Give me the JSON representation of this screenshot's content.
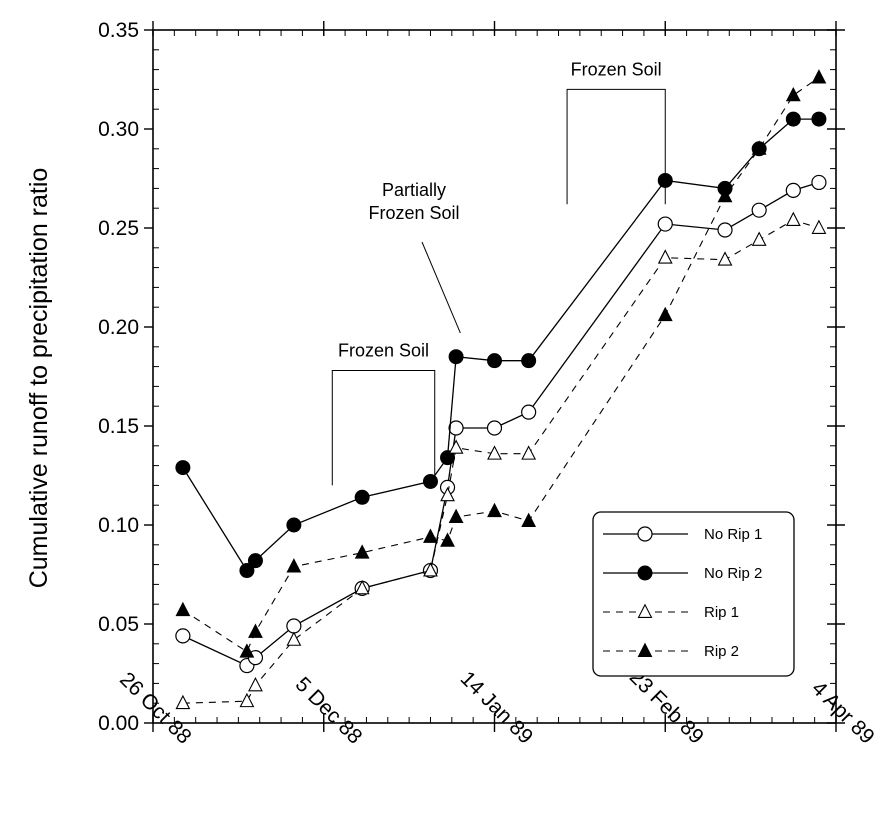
{
  "chart_data": {
    "type": "line",
    "title": "",
    "xlabel": "",
    "ylabel": "Cumulative runoff to precipitation ratio",
    "ylim": [
      0.0,
      0.35
    ],
    "xlim": [
      "1988-10-26",
      "1989-04-04"
    ],
    "x_ticks": [
      "1988-10-26",
      "1988-12-05",
      "1989-01-14",
      "1989-02-23",
      "1989-04-04"
    ],
    "x_tick_labels": [
      "26 Oct 88",
      "5 Dec 88",
      "14 Jan 89",
      "23 Feb 89",
      "4 Apr 89"
    ],
    "y_ticks": [
      0.0,
      0.05,
      0.1,
      0.15,
      0.2,
      0.25,
      0.3,
      0.35
    ],
    "y_tick_labels": [
      "0.00",
      "0.05",
      "0.10",
      "0.15",
      "0.20",
      "0.25",
      "0.30",
      "0.35"
    ],
    "grid": false,
    "legend_position": "bottom-right",
    "series": [
      {
        "name": "No Rip 1",
        "marker": "open-circle",
        "line": "solid",
        "points": [
          [
            "1988-11-02",
            0.044
          ],
          [
            "1988-11-17",
            0.029
          ],
          [
            "1988-11-19",
            0.033
          ],
          [
            "1988-11-28",
            0.049
          ],
          [
            "1988-12-14",
            0.068
          ],
          [
            "1988-12-30",
            0.077
          ],
          [
            "1989-01-03",
            0.119
          ],
          [
            "1989-01-05",
            0.149
          ],
          [
            "1989-01-14",
            0.149
          ],
          [
            "1989-01-22",
            0.157
          ],
          [
            "1989-02-23",
            0.252
          ],
          [
            "1989-03-09",
            0.249
          ],
          [
            "1989-03-17",
            0.259
          ],
          [
            "1989-03-25",
            0.269
          ],
          [
            "1989-03-31",
            0.273
          ]
        ]
      },
      {
        "name": "No Rip 2",
        "marker": "filled-circle",
        "line": "solid",
        "points": [
          [
            "1988-11-02",
            0.129
          ],
          [
            "1988-11-17",
            0.077
          ],
          [
            "1988-11-19",
            0.082
          ],
          [
            "1988-11-28",
            0.1
          ],
          [
            "1988-12-14",
            0.114
          ],
          [
            "1988-12-30",
            0.122
          ],
          [
            "1989-01-03",
            0.134
          ],
          [
            "1989-01-05",
            0.185
          ],
          [
            "1989-01-14",
            0.183
          ],
          [
            "1989-01-22",
            0.183
          ],
          [
            "1989-02-23",
            0.274
          ],
          [
            "1989-03-09",
            0.27
          ],
          [
            "1989-03-17",
            0.29
          ],
          [
            "1989-03-25",
            0.305
          ],
          [
            "1989-03-31",
            0.305
          ]
        ]
      },
      {
        "name": "Rip 1",
        "marker": "open-triangle",
        "line": "dashed",
        "points": [
          [
            "1988-11-02",
            0.01
          ],
          [
            "1988-11-17",
            0.011
          ],
          [
            "1988-11-19",
            0.019
          ],
          [
            "1988-11-28",
            0.042
          ],
          [
            "1988-12-14",
            0.068
          ],
          [
            "1988-12-30",
            0.077
          ],
          [
            "1989-01-03",
            0.115
          ],
          [
            "1989-01-05",
            0.139
          ],
          [
            "1989-01-14",
            0.136
          ],
          [
            "1989-01-22",
            0.136
          ],
          [
            "1989-02-23",
            0.235
          ],
          [
            "1989-03-09",
            0.234
          ],
          [
            "1989-03-17",
            0.244
          ],
          [
            "1989-03-25",
            0.254
          ],
          [
            "1989-03-31",
            0.25
          ]
        ]
      },
      {
        "name": "Rip 2",
        "marker": "filled-triangle",
        "line": "dashed",
        "points": [
          [
            "1988-11-02",
            0.057
          ],
          [
            "1988-11-17",
            0.036
          ],
          [
            "1988-11-19",
            0.046
          ],
          [
            "1988-11-28",
            0.079
          ],
          [
            "1988-12-14",
            0.086
          ],
          [
            "1988-12-30",
            0.094
          ],
          [
            "1989-01-03",
            0.092
          ],
          [
            "1989-01-05",
            0.104
          ],
          [
            "1989-01-14",
            0.107
          ],
          [
            "1989-01-22",
            0.102
          ],
          [
            "1989-02-23",
            0.206
          ],
          [
            "1989-03-09",
            0.266
          ],
          [
            "1989-03-17",
            0.29
          ],
          [
            "1989-03-25",
            0.317
          ],
          [
            "1989-03-31",
            0.326
          ]
        ]
      }
    ],
    "annotations": [
      {
        "id": "frozen-soil-1",
        "text": [
          "Frozen Soil"
        ],
        "bracket": [
          "1988-12-07",
          "1988-12-31"
        ],
        "bracket_top": 0.178,
        "bracket_bottom": 0.12
      },
      {
        "id": "partially-frozen",
        "text": [
          "Partially",
          "Frozen Soil"
        ],
        "pointer_to": [
          "1989-01-06",
          0.197
        ]
      },
      {
        "id": "frozen-soil-2",
        "text": [
          "Frozen Soil"
        ],
        "bracket": [
          "1989-01-31",
          "1989-02-23"
        ],
        "bracket_top": 0.32,
        "bracket_bottom": 0.262
      }
    ]
  }
}
